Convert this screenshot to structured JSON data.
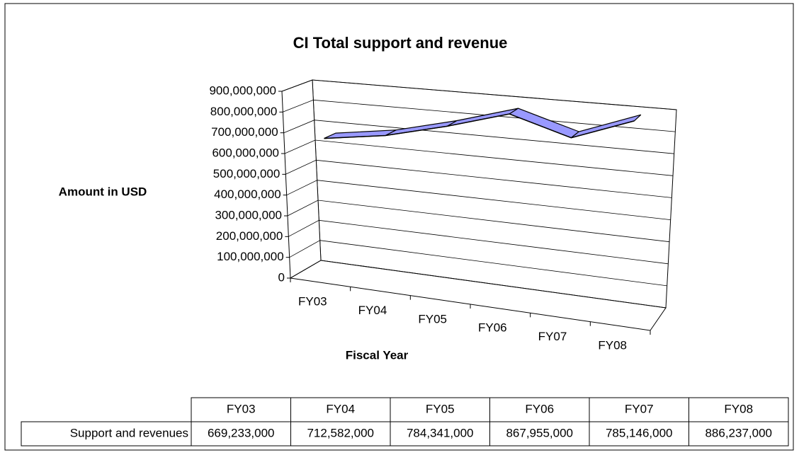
{
  "chart_data": {
    "type": "line",
    "title": "CI Total support and revenue",
    "x_label": "Fiscal Year",
    "y_label": "Amount in USD",
    "categories": [
      "FY03",
      "FY04",
      "FY05",
      "FY06",
      "FY07",
      "FY08"
    ],
    "series": [
      {
        "name": "Support and revenues",
        "color": "#9999ff",
        "values": [
          669233000,
          712582000,
          784341000,
          867955000,
          785146000,
          886237000
        ],
        "value_labels": [
          "669,233,000",
          "712,582,000",
          "784,341,000",
          "867,955,000",
          "785,146,000",
          "886,237,000"
        ]
      }
    ],
    "ylim": [
      0,
      900000000
    ],
    "yticks": [
      0,
      {
        "value": 100000000,
        "label": "100,000,000"
      },
      {
        "value": 200000000,
        "label": "200,000,000"
      },
      {
        "value": 300000000,
        "label": "300,000,000"
      },
      {
        "value": 400000000,
        "label": "400,000,000"
      },
      {
        "value": 500000000,
        "label": "500,000,000"
      },
      {
        "value": 600000000,
        "label": "600,000,000"
      },
      {
        "value": 700000000,
        "label": "700,000,000"
      },
      {
        "value": 800000000,
        "label": "800,000,000"
      },
      {
        "value": 900000000,
        "label": "900,000,000"
      }
    ],
    "grid": true,
    "data_table": true
  }
}
